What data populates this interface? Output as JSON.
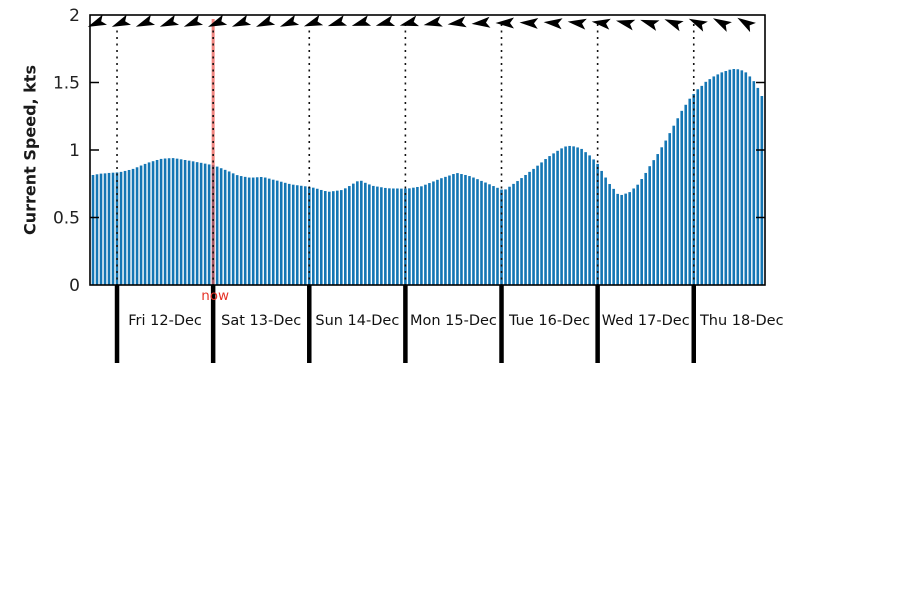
{
  "figure": {
    "ylabel": "Current Speed, kts",
    "now_label": "now",
    "colors": {
      "bar": "#1476b4",
      "now_line": "#e8433c",
      "now_text": "#e53328",
      "axis": "#000000",
      "tick_text": "#212121",
      "day_line": "#000000",
      "dotted_line": "#111111",
      "arrow": "#000000"
    }
  },
  "chart_data": {
    "type": "bar",
    "ylabel": "Current Speed, kts",
    "ylim": [
      0,
      2
    ],
    "yticks": [
      0,
      0.5,
      1,
      1.5,
      2
    ],
    "ytick_labels": [
      "0",
      "0.5",
      "1",
      "1.5",
      "2"
    ],
    "grid": "vertical dotted lines at each midnight",
    "x_axis": {
      "unit": "hours",
      "step": 1,
      "day_labels": [
        "Fri 12-Dec",
        "Sat 13-Dec",
        "Sun 14-Dec",
        "Mon 15-Dec",
        "Tue 16-Dec",
        "Wed 17-Dec",
        "Thu 18-Dec"
      ],
      "day_boundary_hours": [
        6,
        30,
        54,
        78,
        102,
        126,
        150
      ]
    },
    "values": [
      0.815,
      0.82,
      0.825,
      0.827,
      0.83,
      0.832,
      0.834,
      0.838,
      0.845,
      0.852,
      0.86,
      0.872,
      0.885,
      0.897,
      0.908,
      0.917,
      0.926,
      0.934,
      0.937,
      0.939,
      0.94,
      0.936,
      0.931,
      0.926,
      0.921,
      0.916,
      0.91,
      0.905,
      0.899,
      0.893,
      0.887,
      0.877,
      0.865,
      0.853,
      0.841,
      0.827,
      0.814,
      0.807,
      0.801,
      0.796,
      0.796,
      0.798,
      0.8,
      0.796,
      0.788,
      0.78,
      0.773,
      0.765,
      0.757,
      0.749,
      0.743,
      0.739,
      0.735,
      0.731,
      0.727,
      0.721,
      0.713,
      0.704,
      0.696,
      0.691,
      0.695,
      0.699,
      0.703,
      0.716,
      0.733,
      0.751,
      0.768,
      0.772,
      0.757,
      0.745,
      0.734,
      0.729,
      0.724,
      0.719,
      0.716,
      0.715,
      0.715,
      0.714,
      0.714,
      0.716,
      0.721,
      0.726,
      0.731,
      0.743,
      0.755,
      0.767,
      0.779,
      0.791,
      0.801,
      0.811,
      0.822,
      0.829,
      0.822,
      0.815,
      0.807,
      0.796,
      0.784,
      0.771,
      0.759,
      0.746,
      0.733,
      0.72,
      0.707,
      0.708,
      0.728,
      0.749,
      0.77,
      0.792,
      0.815,
      0.838,
      0.86,
      0.884,
      0.908,
      0.933,
      0.955,
      0.975,
      0.994,
      1.012,
      1.026,
      1.03,
      1.027,
      1.019,
      1.008,
      0.984,
      0.96,
      0.93,
      0.897,
      0.845,
      0.796,
      0.748,
      0.712,
      0.675,
      0.667,
      0.677,
      0.688,
      0.715,
      0.743,
      0.785,
      0.83,
      0.88,
      0.925,
      0.97,
      1.02,
      1.07,
      1.125,
      1.18,
      1.235,
      1.29,
      1.335,
      1.38,
      1.415,
      1.45,
      1.475,
      1.505,
      1.525,
      1.545,
      1.56,
      1.575,
      1.585,
      1.595,
      1.6,
      1.598,
      1.59,
      1.575,
      1.545,
      1.51,
      1.46,
      1.4
    ],
    "now": {
      "label": "now",
      "hour_index": 30
    },
    "direction_arrows": {
      "first_hour_index": 1,
      "step_hours": 6,
      "css_rotation_deg": [
        157,
        157,
        158,
        158,
        158,
        157,
        158,
        157,
        158,
        160,
        162,
        163,
        164,
        165,
        168,
        172,
        175,
        180,
        183,
        185,
        188,
        188,
        194,
        198,
        202,
        205,
        208,
        212
      ]
    }
  }
}
